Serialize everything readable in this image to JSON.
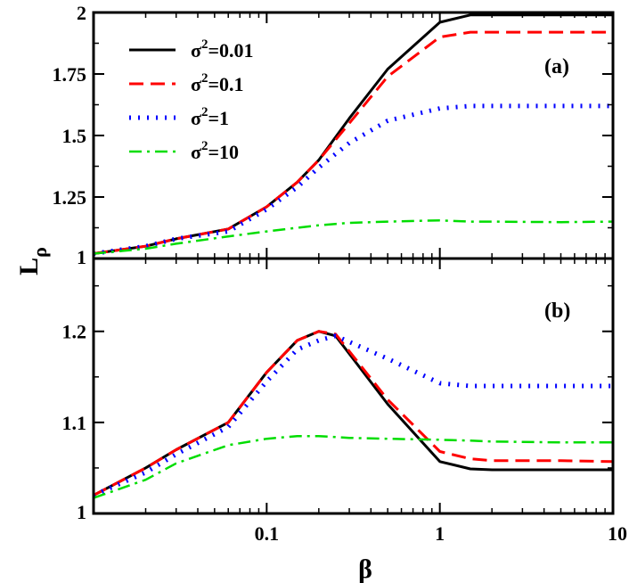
{
  "chart_data": {
    "type": "line",
    "xscale": "log",
    "xlim": [
      0.01,
      10
    ],
    "xlabel": "β",
    "ylabel_main": "L",
    "ylabel_sub": "ρ",
    "xticks": [
      {
        "value": 0.1,
        "label": "0.1"
      },
      {
        "value": 1,
        "label": "1"
      },
      {
        "value": 10,
        "label": "10"
      }
    ],
    "series_styles": [
      {
        "name": "σ²=0.01",
        "legend_base": "σ",
        "legend_sup": "2",
        "legend_rest": "=0.01",
        "color": "#000000",
        "dash": "",
        "width": 3
      },
      {
        "name": "σ²=0.1",
        "legend_base": "σ",
        "legend_sup": "2",
        "legend_rest": "=0.1",
        "color": "#ff0000",
        "dash": "16 8",
        "width": 3
      },
      {
        "name": "σ²=1",
        "legend_base": "σ",
        "legend_sup": "2",
        "legend_rest": "=1",
        "color": "#0000ff",
        "dash": "2 8",
        "width": 5
      },
      {
        "name": "σ²=10",
        "legend_base": "σ",
        "legend_sup": "2",
        "legend_rest": "=10",
        "color": "#00dd00",
        "dash": "14 6 3 6",
        "width": 2.5
      }
    ],
    "panels": [
      {
        "label": "(a)",
        "ylim": [
          1,
          2
        ],
        "yticks": [
          {
            "value": 1,
            "label": "1"
          },
          {
            "value": 1.25,
            "label": "1.25"
          },
          {
            "value": 1.5,
            "label": "1.5"
          },
          {
            "value": 1.75,
            "label": "1.75"
          },
          {
            "value": 2,
            "label": "2"
          }
        ],
        "series": [
          {
            "name": "σ²=0.01",
            "x": [
              0.01,
              0.02,
              0.03,
              0.06,
              0.1,
              0.15,
              0.2,
              0.3,
              0.5,
              1,
              1.5,
              2,
              5,
              10
            ],
            "y": [
              1.02,
              1.05,
              1.08,
              1.12,
              1.21,
              1.31,
              1.4,
              1.57,
              1.77,
              1.96,
              1.99,
              1.99,
              1.99,
              1.99
            ]
          },
          {
            "name": "σ²=0.1",
            "x": [
              0.01,
              0.02,
              0.03,
              0.06,
              0.1,
              0.15,
              0.2,
              0.3,
              0.5,
              1,
              1.5,
              2,
              5,
              10
            ],
            "y": [
              1.02,
              1.05,
              1.08,
              1.12,
              1.21,
              1.31,
              1.4,
              1.55,
              1.74,
              1.9,
              1.92,
              1.92,
              1.92,
              1.92
            ]
          },
          {
            "name": "σ²=1",
            "x": [
              0.01,
              0.02,
              0.03,
              0.06,
              0.1,
              0.15,
              0.2,
              0.3,
              0.5,
              1,
              1.5,
              2,
              5,
              10
            ],
            "y": [
              1.02,
              1.05,
              1.08,
              1.11,
              1.2,
              1.29,
              1.37,
              1.47,
              1.56,
              1.61,
              1.62,
              1.62,
              1.62,
              1.62
            ]
          },
          {
            "name": "σ²=10",
            "x": [
              0.01,
              0.02,
              0.03,
              0.06,
              0.1,
              0.15,
              0.2,
              0.3,
              0.5,
              1,
              1.5,
              2,
              5,
              10
            ],
            "y": [
              1.02,
              1.04,
              1.06,
              1.09,
              1.11,
              1.125,
              1.135,
              1.145,
              1.15,
              1.155,
              1.15,
              1.15,
              1.148,
              1.15
            ]
          }
        ]
      },
      {
        "label": "(b)",
        "ylim": [
          1,
          1.28
        ],
        "yticks": [
          {
            "value": 1,
            "label": "1"
          },
          {
            "value": 1.1,
            "label": "1.1"
          },
          {
            "value": 1.2,
            "label": "1.2"
          }
        ],
        "series": [
          {
            "name": "σ²=0.01",
            "x": [
              0.01,
              0.02,
              0.03,
              0.06,
              0.1,
              0.15,
              0.2,
              0.25,
              0.5,
              1,
              1.5,
              2,
              5,
              10
            ],
            "y": [
              1.02,
              1.05,
              1.07,
              1.1,
              1.155,
              1.19,
              1.2,
              1.195,
              1.12,
              1.057,
              1.049,
              1.048,
              1.048,
              1.048
            ]
          },
          {
            "name": "σ²=0.1",
            "x": [
              0.01,
              0.02,
              0.03,
              0.06,
              0.1,
              0.15,
              0.2,
              0.25,
              0.5,
              1,
              1.5,
              2,
              5,
              10
            ],
            "y": [
              1.02,
              1.05,
              1.07,
              1.1,
              1.155,
              1.19,
              1.2,
              1.197,
              1.125,
              1.068,
              1.06,
              1.058,
              1.058,
              1.057
            ]
          },
          {
            "name": "σ²=1",
            "x": [
              0.01,
              0.02,
              0.03,
              0.06,
              0.1,
              0.15,
              0.2,
              0.25,
              0.5,
              1,
              1.5,
              2,
              5,
              10
            ],
            "y": [
              1.02,
              1.045,
              1.065,
              1.095,
              1.145,
              1.18,
              1.19,
              1.195,
              1.17,
              1.143,
              1.14,
              1.14,
              1.14,
              1.14
            ]
          },
          {
            "name": "σ²=10",
            "x": [
              0.01,
              0.02,
              0.03,
              0.06,
              0.1,
              0.15,
              0.2,
              0.3,
              0.5,
              1,
              1.5,
              2,
              5,
              10
            ],
            "y": [
              1.017,
              1.037,
              1.055,
              1.075,
              1.082,
              1.085,
              1.085,
              1.083,
              1.082,
              1.081,
              1.08,
              1.079,
              1.078,
              1.078
            ]
          }
        ]
      }
    ]
  }
}
